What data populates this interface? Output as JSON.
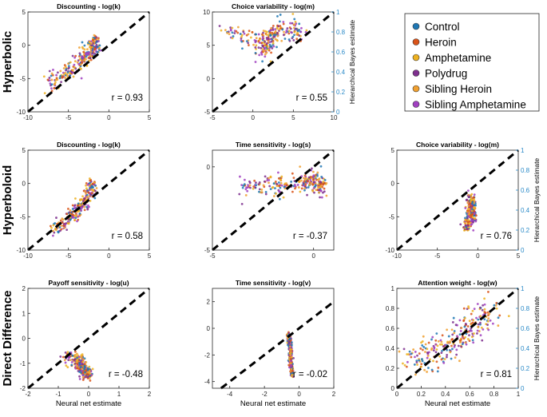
{
  "figure": {
    "row_labels": [
      "Hyperbolic",
      "Hyperboloid",
      "Direct Difference"
    ],
    "x_axis_label": "Neural net estimate",
    "right_axis_label": "Hierarchical Bayes estimate",
    "legend": [
      {
        "label": "Control",
        "color": "#1f77b4"
      },
      {
        "label": "Heroin",
        "color": "#d95319"
      },
      {
        "label": "Amphetamine",
        "color": "#edb120"
      },
      {
        "label": "Polydrug",
        "color": "#7e2f8e"
      },
      {
        "label": "Sibling Heroin",
        "color": "#f0a030"
      },
      {
        "label": "Sibling Amphetamine",
        "color": "#a040c0"
      }
    ],
    "right_axis_color": "#2a8ac8"
  },
  "chart_data": [
    {
      "id": "p00",
      "type": "scatter",
      "title": "Discounting - log(k)",
      "r_label": "r = 0.93",
      "xlim": [
        -10,
        5
      ],
      "ylim": [
        -10,
        5
      ],
      "xticks": [
        "-10",
        "-5",
        "0",
        "5"
      ],
      "yticks": [
        "-10",
        "-5",
        "0",
        "5"
      ],
      "cloud": [
        [
          -7.5,
          -5.5
        ],
        [
          -5,
          -4
        ],
        [
          -3,
          -2
        ],
        [
          -2,
          -0.5
        ],
        [
          -1.5,
          0.5
        ]
      ],
      "spread": 0.7,
      "diagonal": true
    },
    {
      "id": "p01",
      "type": "scatter",
      "title": "Choice variability - log(m)",
      "r_label": "r = 0.55",
      "xlim": [
        -5,
        10
      ],
      "ylim": [
        -5,
        10
      ],
      "xticks": [
        "-5",
        "0",
        "5",
        "10"
      ],
      "yticks": [
        "-5",
        "0",
        "5",
        "10"
      ],
      "right_ticks": [
        "0",
        "0.2",
        "0.4",
        "0.6",
        "0.8",
        "1"
      ],
      "cloud": [
        [
          -3.5,
          7
        ],
        [
          0.5,
          6
        ],
        [
          1.5,
          4
        ],
        [
          2,
          6.5
        ],
        [
          3.5,
          7.5
        ],
        [
          6,
          7
        ]
      ],
      "spread": 0.8,
      "diagonal": true
    },
    {
      "id": "p10",
      "type": "scatter",
      "title": "Discounting - log(k)",
      "r_label": "r = 0.58",
      "xlim": [
        -10,
        5
      ],
      "ylim": [
        -10,
        5
      ],
      "xticks": [
        "-10",
        "-5",
        "0",
        "5"
      ],
      "yticks": [
        "-10",
        "-5",
        "0",
        "5"
      ],
      "cloud": [
        [
          -7,
          -7
        ],
        [
          -5,
          -5.5
        ],
        [
          -4,
          -4
        ],
        [
          -3,
          -3
        ],
        [
          -2.5,
          -1.5
        ],
        [
          -2,
          0
        ]
      ],
      "spread": 0.6,
      "diagonal": true
    },
    {
      "id": "p11",
      "type": "scatter",
      "title": "Time sensitivity - log(s)",
      "r_label": "r = -0.37",
      "xlim": [
        -5,
        1
      ],
      "ylim": [
        -5,
        1
      ],
      "xticks": [
        "-5",
        "0"
      ],
      "yticks": [
        "-5",
        "0"
      ],
      "cloud": [
        [
          -3.5,
          -1.1
        ],
        [
          -2,
          -1.2
        ],
        [
          -0.5,
          -1
        ],
        [
          0,
          -0.8
        ],
        [
          0.5,
          -1.2
        ]
      ],
      "spread": 0.3,
      "diagonal": true
    },
    {
      "id": "p12",
      "type": "scatter",
      "title": "Choice variability - log(m)",
      "r_label": "r = 0.76",
      "xlim": [
        -10,
        5
      ],
      "ylim": [
        -10,
        5
      ],
      "xticks": [
        "-10",
        "-5",
        "0",
        "5"
      ],
      "yticks": [
        "-10",
        "-5",
        "0",
        "5"
      ],
      "right_ticks": [
        "0",
        "0.2",
        "0.4",
        "0.6",
        "0.8",
        "1"
      ],
      "cloud": [
        [
          -1.5,
          -7
        ],
        [
          -1,
          -5
        ],
        [
          -0.5,
          -3.5
        ],
        [
          -1,
          -2
        ],
        [
          -0.5,
          -6
        ]
      ],
      "spread": 0.5,
      "diagonal": true
    },
    {
      "id": "p20",
      "type": "scatter",
      "title": "Payoff sensitivity - log(u)",
      "r_label": "r = -0.48",
      "xlim": [
        -2,
        2
      ],
      "ylim": [
        -2,
        2
      ],
      "xticks": [
        "-2",
        "-1",
        "0",
        "1",
        "2"
      ],
      "yticks": [
        "-2",
        "-1",
        "0",
        "1",
        "2"
      ],
      "cloud": [
        [
          -0.8,
          -0.7
        ],
        [
          -0.3,
          -0.9
        ],
        [
          -0.1,
          -1.2
        ],
        [
          0,
          -1.5
        ],
        [
          -0.4,
          -1
        ]
      ],
      "spread": 0.15,
      "diagonal": true
    },
    {
      "id": "p21",
      "type": "scatter",
      "title": "Time sensitivity - log(v)",
      "r_label": "r = -0.02",
      "xlim": [
        -5,
        2
      ],
      "ylim": [
        -4.5,
        3
      ],
      "xticks": [
        "-4",
        "-2",
        "0",
        "2"
      ],
      "yticks": [
        "-4",
        "-2",
        "0",
        "2"
      ],
      "cloud": [
        [
          -0.6,
          -0.5
        ],
        [
          -0.5,
          -1.5
        ],
        [
          -0.5,
          -2.5
        ],
        [
          -0.4,
          -3.5
        ]
      ],
      "spread": 0.1,
      "diagonal": true
    },
    {
      "id": "p22",
      "type": "scatter",
      "title": "Attention weight - log(w)",
      "r_label": "r = 0.81",
      "xlim": [
        0,
        1
      ],
      "ylim": [
        0,
        1
      ],
      "xticks": [
        "0",
        "0.2",
        "0.4",
        "0.6",
        "0.8",
        "1"
      ],
      "yticks": [
        "0",
        "0.2",
        "0.4",
        "0.6",
        "0.8",
        "1"
      ],
      "right_ticks": [
        "0",
        "0.2",
        "0.4",
        "0.6",
        "0.8",
        "1"
      ],
      "cloud": [
        [
          0.1,
          0.25
        ],
        [
          0.3,
          0.35
        ],
        [
          0.5,
          0.5
        ],
        [
          0.65,
          0.65
        ],
        [
          0.8,
          0.8
        ]
      ],
      "spread": 0.09,
      "diagonal": true
    }
  ]
}
